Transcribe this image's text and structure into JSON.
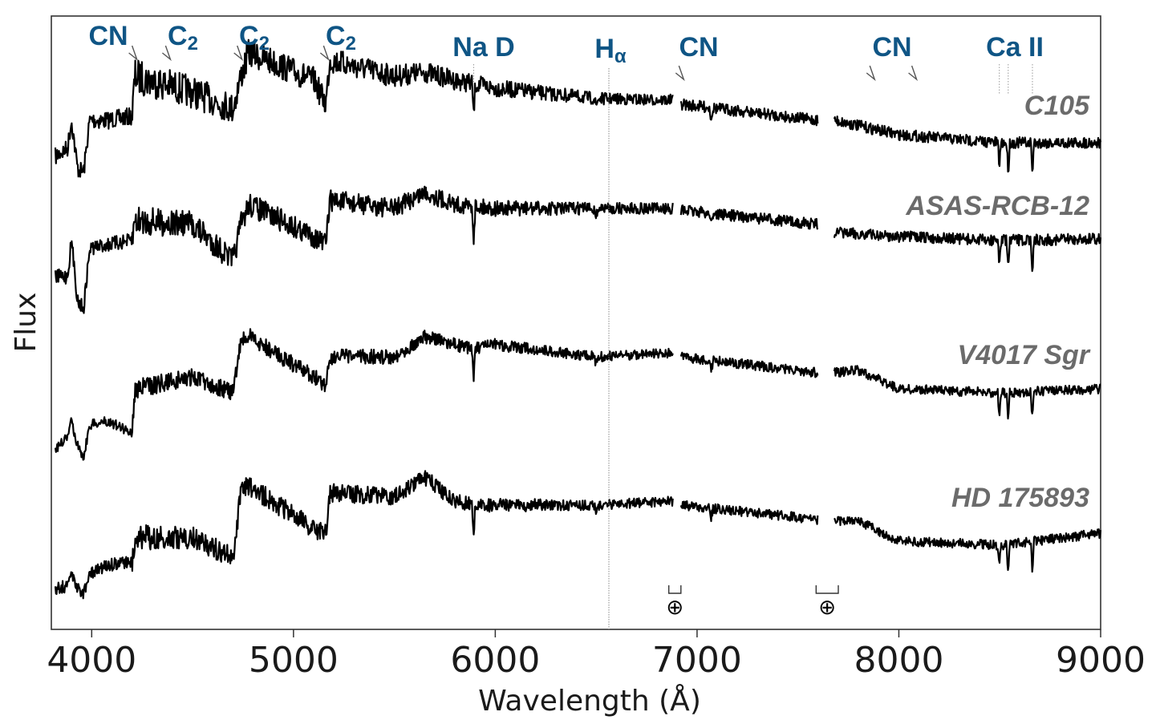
{
  "chart_data": {
    "type": "line",
    "title": "",
    "xlabel": "Wavelength (Å)",
    "ylabel": "Flux",
    "xlim": [
      3800,
      9000
    ],
    "x_ticks": [
      "4000",
      "5000",
      "6000",
      "7000",
      "8000",
      "9000"
    ],
    "y_ticks_shown": false,
    "grid": false,
    "gaps": [
      [
        6880,
        6920
      ],
      [
        7600,
        7680
      ]
    ],
    "series": [
      {
        "name": "C105",
        "color": "#000000"
      },
      {
        "name": "ASAS-RCB-12",
        "color": "#000000"
      },
      {
        "name": "V4017 Sgr",
        "color": "#000000"
      },
      {
        "name": "HD 175893",
        "color": "#000000"
      }
    ],
    "annotations": [
      {
        "label": "CN",
        "wavelength": 4216
      },
      {
        "label": "C",
        "sub": "2",
        "wavelength": 4382
      },
      {
        "label": "C",
        "sub": "2",
        "wavelength": 4737
      },
      {
        "label": "C",
        "sub": "2",
        "wavelength": 5165
      },
      {
        "label": "Na D",
        "wavelength": 5893
      },
      {
        "label": "H",
        "sub": "α",
        "wavelength": 6563
      },
      {
        "label": "CN",
        "wavelength": 6926
      },
      {
        "label": "CN",
        "wavelength": 7872
      },
      {
        "label": "CN",
        "wavelength": 8080
      },
      {
        "label": "Ca II",
        "wavelength": 8542
      }
    ],
    "telluric_bands": [
      {
        "symbol": "⊕",
        "range": [
          6860,
          6920
        ]
      },
      {
        "symbol": "⊕",
        "range": [
          7590,
          7700
        ]
      }
    ]
  }
}
